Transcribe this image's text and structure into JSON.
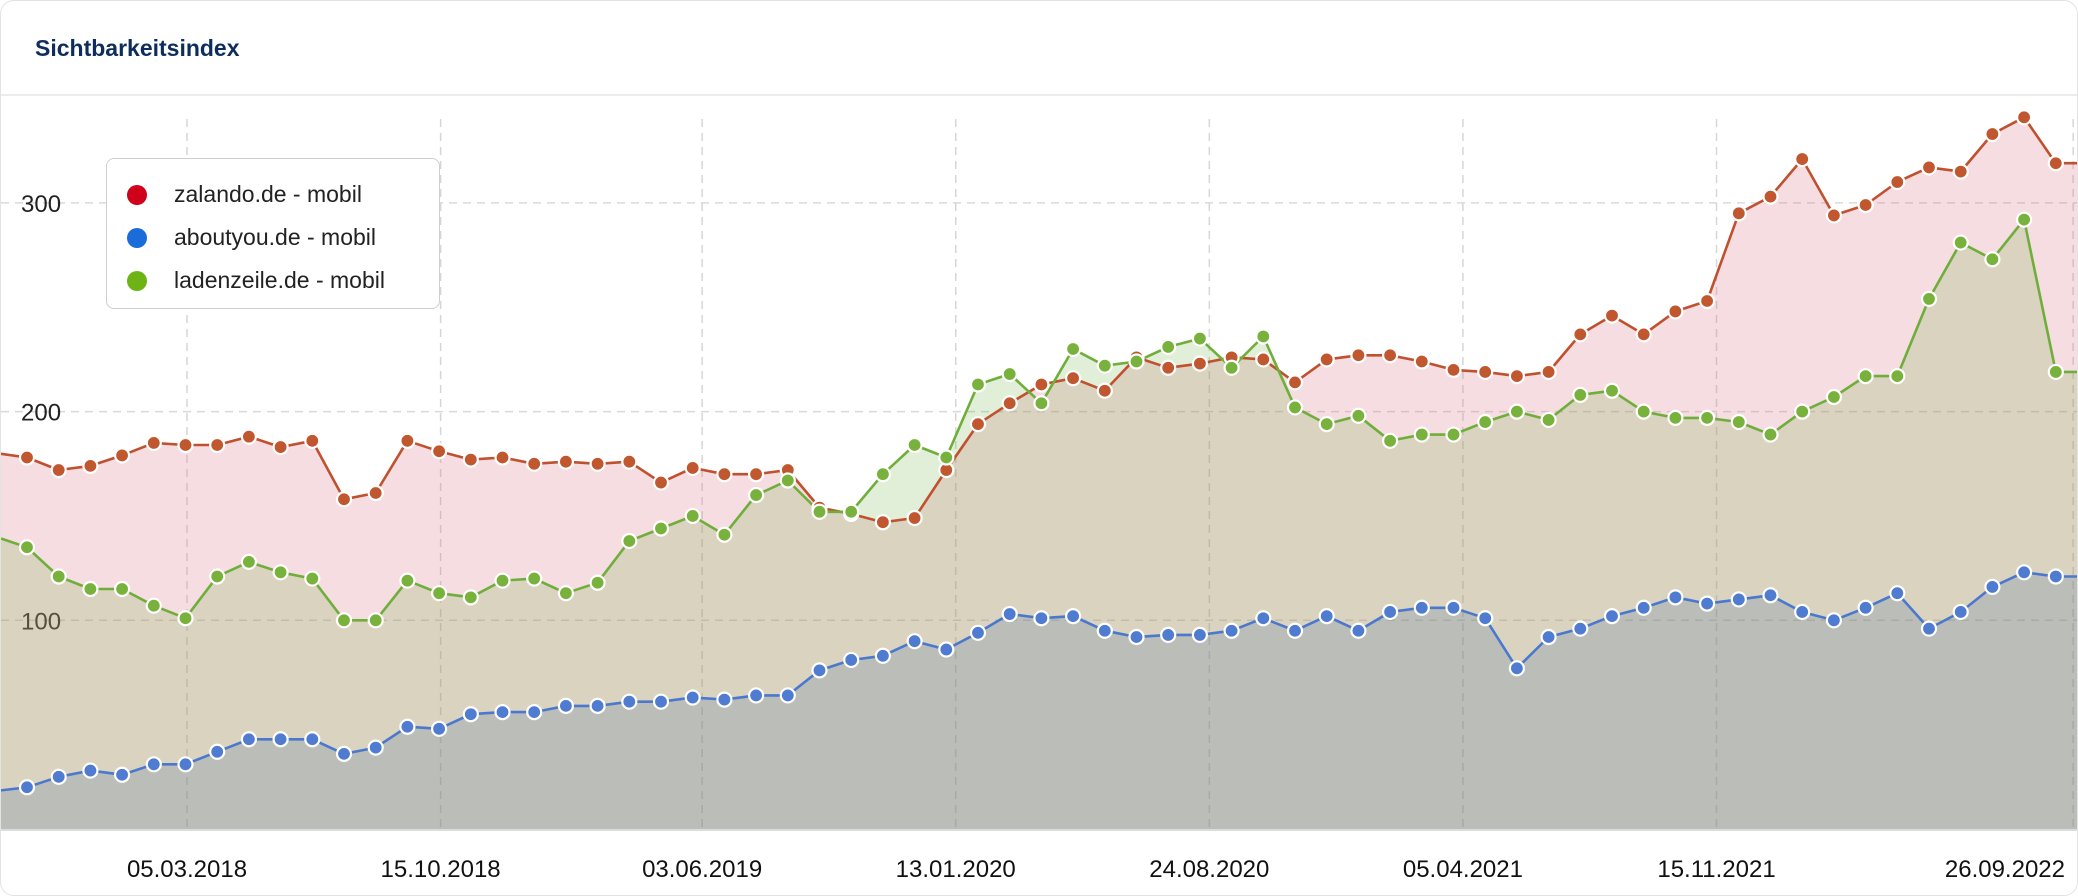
{
  "header": {
    "title": "Sichtbarkeitsindex"
  },
  "legend": [
    {
      "label": "zalando.de - mobil",
      "color": "#d0021b"
    },
    {
      "label": "aboutyou.de - mobil",
      "color": "#1a6dd8"
    },
    {
      "label": "ladenzeile.de - mobil",
      "color": "#6db314"
    }
  ],
  "chart_data": {
    "type": "area",
    "title": "Sichtbarkeitsindex",
    "x_start": "2017-10-16",
    "interval_days": 28,
    "x_tick_labels": [
      "05.03.2018",
      "15.10.2018",
      "03.06.2019",
      "13.01.2020",
      "24.08.2020",
      "05.04.2021",
      "15.11.2021",
      "26.09.2022"
    ],
    "y_tick_labels": [
      "100",
      "200",
      "300"
    ],
    "y_ticks": [
      100,
      200,
      300
    ],
    "ylim": [
      0,
      345
    ],
    "grid": true,
    "legend_position": "top-left",
    "series": [
      {
        "name": "zalando.de - mobil",
        "line_color": "#c0512f",
        "values": [
          178,
          172,
          174,
          179,
          185,
          184,
          184,
          188,
          183,
          186,
          158,
          161,
          186,
          181,
          177,
          178,
          175,
          176,
          175,
          176,
          166,
          173,
          170,
          170,
          172,
          154,
          151,
          147,
          149,
          172,
          194,
          204,
          213,
          216,
          210,
          226,
          221,
          223,
          226,
          225,
          214,
          225,
          227,
          227,
          224,
          220,
          219,
          217,
          219,
          237,
          246,
          237,
          248,
          253,
          295,
          303,
          321,
          294,
          299,
          310,
          317,
          315,
          333,
          341,
          319
        ]
      },
      {
        "name": "ladenzeile.de - mobil",
        "line_color": "#6fae3b",
        "values": [
          135,
          121,
          115,
          115,
          107,
          101,
          121,
          128,
          123,
          120,
          100,
          100,
          119,
          113,
          111,
          119,
          120,
          113,
          118,
          138,
          144,
          150,
          141,
          160,
          167,
          152,
          152,
          170,
          184,
          178,
          213,
          218,
          204,
          230,
          222,
          224,
          231,
          235,
          221,
          236,
          202,
          194,
          198,
          186,
          189,
          189,
          195,
          200,
          196,
          208,
          210,
          200,
          197,
          197,
          195,
          189,
          200,
          207,
          217,
          217,
          254,
          281,
          273,
          292,
          219
        ]
      },
      {
        "name": "aboutyou.de - mobil",
        "line_color": "#4a78cf",
        "values": [
          20,
          25,
          28,
          26,
          31,
          31,
          37,
          43,
          43,
          43,
          36,
          39,
          49,
          48,
          55,
          56,
          56,
          59,
          59,
          61,
          61,
          63,
          62,
          64,
          64,
          76,
          81,
          83,
          90,
          86,
          94,
          103,
          101,
          102,
          95,
          92,
          93,
          93,
          95,
          101,
          95,
          102,
          95,
          104,
          106,
          106,
          101,
          77,
          92,
          96,
          102,
          106,
          111,
          108,
          110,
          112,
          104,
          100,
          106,
          113,
          96,
          104,
          116,
          123,
          121
        ]
      }
    ]
  }
}
